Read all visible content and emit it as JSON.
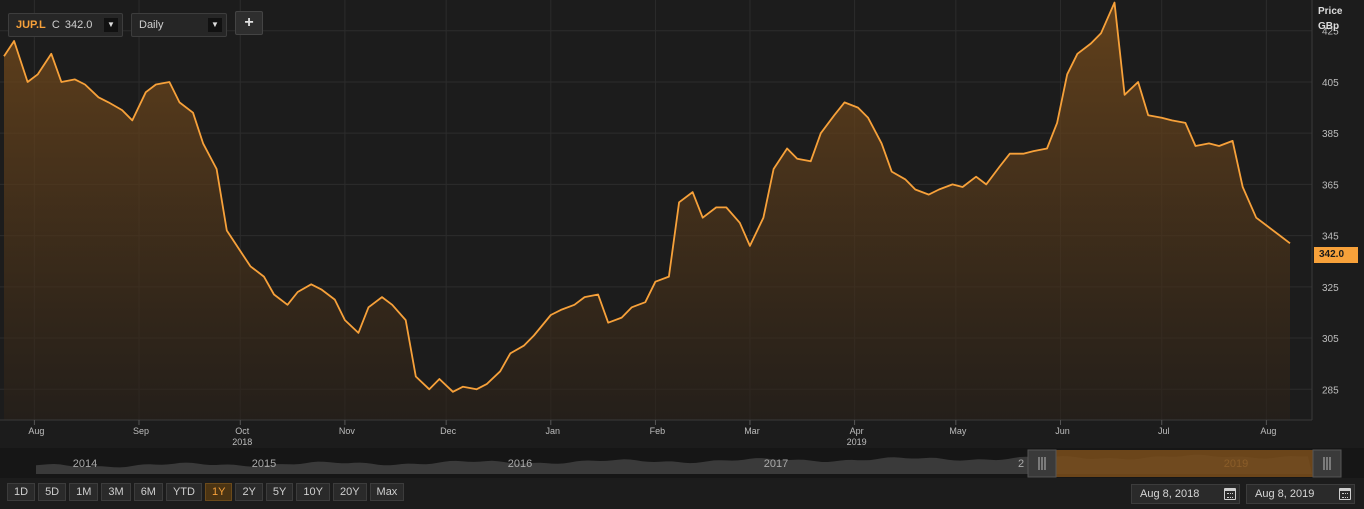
{
  "toolbar": {
    "symbol": "JUP.L",
    "close_prefix": "C",
    "close_value": "342.0",
    "interval": "Daily",
    "add_label": "+"
  },
  "axis": {
    "price_label": "Price",
    "unit_label": "GBp"
  },
  "last_price_label": "342.0",
  "navigator": {
    "year_labels": [
      "2014",
      "2015",
      "2016",
      "2017",
      "2",
      "2019"
    ]
  },
  "ranges": [
    "1D",
    "5D",
    "1M",
    "3M",
    "6M",
    "YTD",
    "1Y",
    "2Y",
    "5Y",
    "10Y",
    "20Y",
    "Max"
  ],
  "active_range": "1Y",
  "date_range": {
    "from": "Aug 8, 2018",
    "to": "Aug 8, 2019"
  },
  "colors": {
    "background": "#1c1c1c",
    "line": "#f7a13a",
    "grid": "#2c2c2c"
  },
  "chart_data": {
    "type": "area",
    "title": "",
    "xlabel": "",
    "ylabel": "Price GBp",
    "ylim": [
      273,
      437
    ],
    "y_ticks": [
      285,
      305,
      325,
      345,
      365,
      385,
      405,
      425
    ],
    "grid": true,
    "month_ticks": [
      {
        "label": "Aug",
        "date": "2018-08-01"
      },
      {
        "label": "Sep",
        "date": "2018-09-01"
      },
      {
        "label": "Oct",
        "date": "2018-10-01"
      },
      {
        "label": "Nov",
        "date": "2018-11-01"
      },
      {
        "label": "Dec",
        "date": "2018-12-01"
      },
      {
        "label": "Jan",
        "date": "2019-01-01"
      },
      {
        "label": "Feb",
        "date": "2019-02-01"
      },
      {
        "label": "Mar",
        "date": "2019-03-01"
      },
      {
        "label": "Apr",
        "date": "2019-04-01"
      },
      {
        "label": "May",
        "date": "2019-05-01"
      },
      {
        "label": "Jun",
        "date": "2019-06-01"
      },
      {
        "label": "Jul",
        "date": "2019-07-01"
      },
      {
        "label": "Aug",
        "date": "2019-08-01"
      }
    ],
    "year_ticks": [
      {
        "label": "2018",
        "date": "2018-10-01"
      },
      {
        "label": "2019",
        "date": "2019-04-01"
      }
    ],
    "x": [
      "2018-07-23",
      "2018-07-26",
      "2018-07-30",
      "2018-08-02",
      "2018-08-06",
      "2018-08-09",
      "2018-08-13",
      "2018-08-16",
      "2018-08-20",
      "2018-08-23",
      "2018-08-27",
      "2018-08-30",
      "2018-09-03",
      "2018-09-06",
      "2018-09-10",
      "2018-09-13",
      "2018-09-17",
      "2018-09-20",
      "2018-09-24",
      "2018-09-27",
      "2018-10-01",
      "2018-10-04",
      "2018-10-08",
      "2018-10-11",
      "2018-10-15",
      "2018-10-18",
      "2018-10-22",
      "2018-10-25",
      "2018-10-29",
      "2018-11-01",
      "2018-11-05",
      "2018-11-08",
      "2018-11-12",
      "2018-11-15",
      "2018-11-19",
      "2018-11-22",
      "2018-11-26",
      "2018-11-29",
      "2018-12-03",
      "2018-12-06",
      "2018-12-10",
      "2018-12-13",
      "2018-12-17",
      "2018-12-20",
      "2018-12-24",
      "2018-12-27",
      "2019-01-01",
      "2019-01-04",
      "2019-01-08",
      "2019-01-11",
      "2019-01-15",
      "2019-01-18",
      "2019-01-22",
      "2019-01-25",
      "2019-01-29",
      "2019-02-01",
      "2019-02-05",
      "2019-02-08",
      "2019-02-12",
      "2019-02-15",
      "2019-02-19",
      "2019-02-22",
      "2019-02-26",
      "2019-03-01",
      "2019-03-05",
      "2019-03-08",
      "2019-03-12",
      "2019-03-15",
      "2019-03-19",
      "2019-03-22",
      "2019-03-26",
      "2019-03-29",
      "2019-04-02",
      "2019-04-05",
      "2019-04-09",
      "2019-04-12",
      "2019-04-16",
      "2019-04-19",
      "2019-04-23",
      "2019-04-26",
      "2019-04-30",
      "2019-05-03",
      "2019-05-07",
      "2019-05-10",
      "2019-05-14",
      "2019-05-17",
      "2019-05-21",
      "2019-05-24",
      "2019-05-28",
      "2019-05-31",
      "2019-06-03",
      "2019-06-06",
      "2019-06-10",
      "2019-06-13",
      "2019-06-17",
      "2019-06-20",
      "2019-06-24",
      "2019-06-27",
      "2019-07-01",
      "2019-07-04",
      "2019-07-08",
      "2019-07-11",
      "2019-07-15",
      "2019-07-18",
      "2019-07-22",
      "2019-07-25",
      "2019-07-29",
      "2019-08-01",
      "2019-08-05",
      "2019-08-08"
    ],
    "series": [
      {
        "values": [
          415,
          421,
          405,
          408,
          416,
          405,
          406,
          404,
          399,
          397,
          394,
          390,
          401,
          404,
          405,
          397,
          393,
          381,
          371,
          347,
          339,
          333,
          329,
          322,
          318,
          323,
          326,
          324,
          320,
          312,
          307,
          317,
          321,
          318,
          312,
          290,
          285,
          289,
          284,
          286,
          285,
          287,
          292,
          299,
          302,
          306,
          314,
          316,
          318,
          321,
          322,
          311,
          313,
          317,
          319,
          327,
          329,
          358,
          362,
          352,
          356,
          356,
          350,
          341,
          352,
          371,
          379,
          375,
          374,
          385,
          392,
          397,
          395,
          391,
          381,
          370,
          367,
          363,
          361,
          363,
          365,
          364,
          368,
          365,
          372,
          377,
          377,
          378,
          379,
          389,
          408,
          416,
          420,
          424,
          436,
          400,
          405,
          392,
          391,
          390,
          389,
          380,
          381,
          380,
          382,
          364,
          352,
          349,
          345,
          342
        ]
      }
    ]
  }
}
